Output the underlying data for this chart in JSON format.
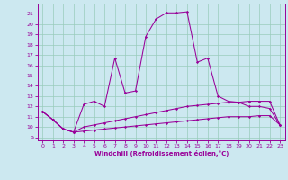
{
  "xlabel": "Windchill (Refroidissement éolien,°C)",
  "bg_color": "#cce8f0",
  "grid_color": "#99ccbb",
  "line_color": "#990099",
  "xlim": [
    -0.5,
    23.5
  ],
  "ylim": [
    8.7,
    22.0
  ],
  "xticks": [
    0,
    1,
    2,
    3,
    4,
    5,
    6,
    7,
    8,
    9,
    10,
    11,
    12,
    13,
    14,
    15,
    16,
    17,
    18,
    19,
    20,
    21,
    22,
    23
  ],
  "yticks": [
    9,
    10,
    11,
    12,
    13,
    14,
    15,
    16,
    17,
    18,
    19,
    20,
    21
  ],
  "line1_x": [
    0,
    1,
    2,
    3,
    4,
    5,
    6,
    7,
    8,
    9,
    10,
    11,
    12,
    13,
    14,
    15,
    16,
    17,
    18,
    19,
    20,
    21,
    22,
    23
  ],
  "line1_y": [
    11.5,
    10.7,
    9.8,
    9.5,
    9.6,
    9.7,
    9.8,
    9.9,
    10.0,
    10.1,
    10.2,
    10.3,
    10.4,
    10.5,
    10.6,
    10.7,
    10.8,
    10.9,
    11.0,
    11.0,
    11.0,
    11.1,
    11.1,
    10.2
  ],
  "line2_x": [
    0,
    1,
    2,
    3,
    4,
    5,
    6,
    7,
    8,
    9,
    10,
    11,
    12,
    13,
    14,
    15,
    16,
    17,
    18,
    19,
    20,
    21,
    22,
    23
  ],
  "line2_y": [
    11.5,
    10.7,
    9.8,
    9.5,
    10.0,
    10.2,
    10.4,
    10.6,
    10.8,
    11.0,
    11.2,
    11.4,
    11.6,
    11.8,
    12.0,
    12.1,
    12.2,
    12.3,
    12.4,
    12.4,
    12.5,
    12.5,
    12.5,
    10.2
  ],
  "line3_x": [
    0,
    1,
    2,
    3,
    4,
    5,
    6,
    7,
    8,
    9,
    10,
    11,
    12,
    13,
    14,
    15,
    16,
    17,
    18,
    19,
    20,
    21,
    22,
    23
  ],
  "line3_y": [
    11.5,
    10.7,
    9.8,
    9.5,
    12.2,
    12.5,
    12.0,
    16.7,
    13.3,
    13.5,
    18.8,
    20.5,
    21.1,
    21.1,
    21.2,
    16.3,
    16.7,
    13.0,
    12.5,
    12.4,
    12.0,
    12.0,
    11.8,
    10.2
  ]
}
